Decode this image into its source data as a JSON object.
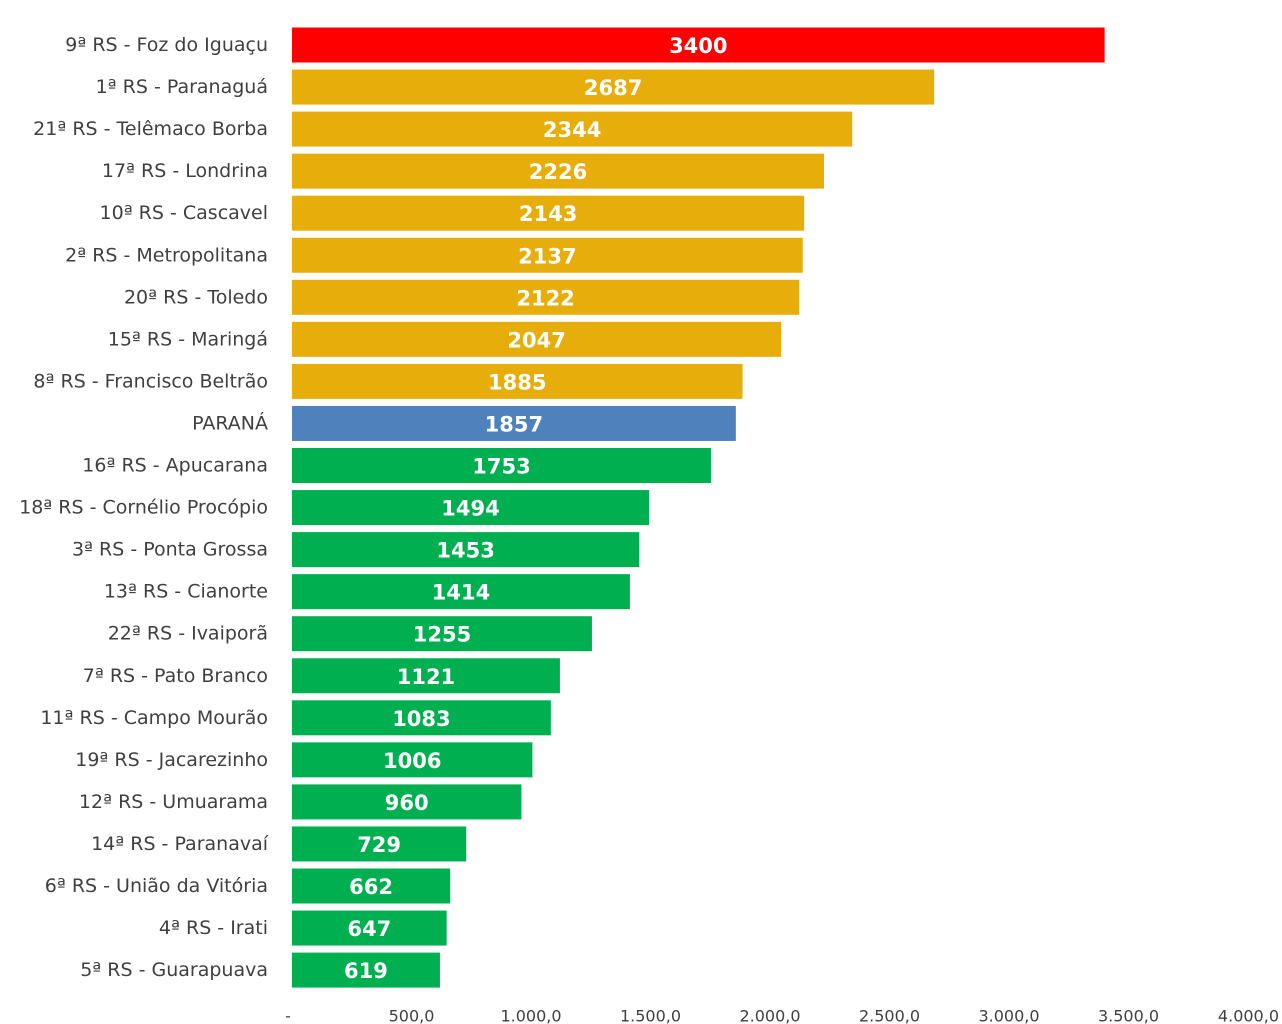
{
  "chart_data": {
    "type": "bar",
    "orientation": "horizontal",
    "categories": [
      "9ª RS - Foz do Iguaçu",
      "1ª RS - Paranaguá",
      "21ª RS - Telêmaco Borba",
      "17ª RS - Londrina",
      "10ª RS - Cascavel",
      "2ª RS - Metropolitana",
      "20ª RS - Toledo",
      "15ª RS - Maringá",
      "8ª RS - Francisco Beltrão",
      "PARANÁ",
      "16ª RS - Apucarana",
      "18ª RS - Cornélio Procópio",
      "3ª RS - Ponta Grossa",
      "13ª RS - Cianorte",
      "22ª RS - Ivaiporã",
      "7ª RS - Pato Branco",
      "11ª RS - Campo Mourão",
      "19ª RS - Jacarezinho",
      "12ª RS - Umuarama",
      "14ª RS - Paranavaí",
      "6ª RS - União da Vitória",
      "4ª RS - Irati",
      "5ª RS - Guarapuava"
    ],
    "values": [
      3400,
      2687,
      2344,
      2226,
      2143,
      2137,
      2122,
      2047,
      1885,
      1857,
      1753,
      1494,
      1453,
      1414,
      1255,
      1121,
      1083,
      1006,
      960,
      729,
      662,
      647,
      619
    ],
    "data_labels": [
      "3400",
      "2687",
      "2344",
      "2226",
      "2143",
      "2137",
      "2122",
      "2047",
      "1885",
      "1857",
      "1753",
      "1494",
      "1453",
      "1414",
      "1255",
      "1121",
      "1083",
      "1006",
      "960",
      "729",
      "662",
      "647",
      "619"
    ],
    "bar_colors": [
      "#ff0000",
      "#e6ad0b",
      "#e6ad0b",
      "#e6ad0b",
      "#e6ad0b",
      "#e6ad0b",
      "#e6ad0b",
      "#e6ad0b",
      "#e6ad0b",
      "#4f81bd",
      "#00b050",
      "#00b050",
      "#00b050",
      "#00b050",
      "#00b050",
      "#00b050",
      "#00b050",
      "#00b050",
      "#00b050",
      "#00b050",
      "#00b050",
      "#00b050",
      "#00b050"
    ],
    "xlim": [
      0,
      4000
    ],
    "x_ticks": [
      0,
      500,
      1000,
      1500,
      2000,
      2500,
      3000,
      3500,
      4000
    ],
    "x_tick_labels": [
      "-",
      "500,0",
      "1.000,0",
      "1.500,0",
      "2.000,0",
      "2.500,0",
      "3.000,0",
      "3.500,0",
      "4.000,0"
    ],
    "grid": false,
    "legend": "none",
    "title": "",
    "xlabel": "",
    "ylabel": ""
  }
}
